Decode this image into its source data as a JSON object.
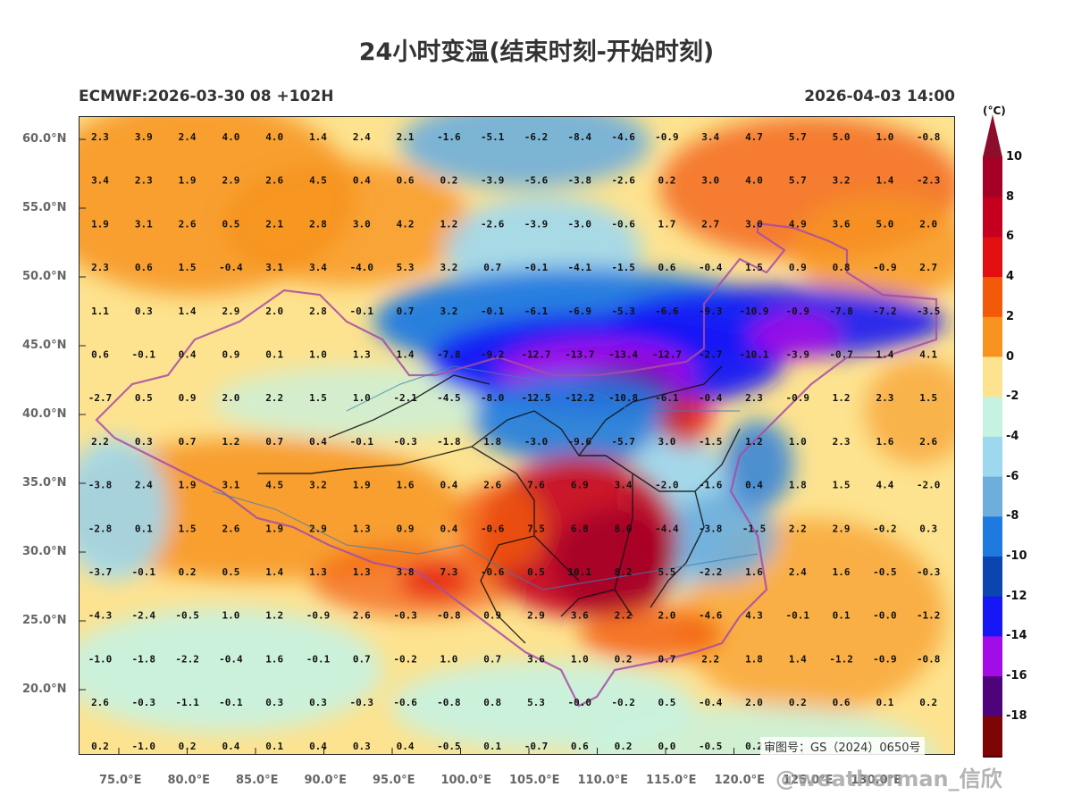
{
  "title": "24小时变温(结束时刻-开始时刻)",
  "model_info": "ECMWF:2026-03-30 08 +102H",
  "valid_time": "2026-04-03 14:00",
  "colorbar": {
    "unit": "(°C)",
    "labels": [
      "10",
      "8",
      "6",
      "4",
      "2",
      "0",
      "-2",
      "-4",
      "-6",
      "-8",
      "-10",
      "-12",
      "-14",
      "-16",
      "-18"
    ],
    "colors": [
      "#a50026",
      "#c4001e",
      "#e10f0f",
      "#f25a0a",
      "#f7931e",
      "#fde390",
      "#c6f2e2",
      "#9ed8ef",
      "#6eaedb",
      "#1f7ae0",
      "#0b46b0",
      "#1717f5",
      "#a20ce6",
      "#4f037a",
      "#7d0505"
    ],
    "top_color": "#8c0e2a",
    "bottom_color": "#3a0000"
  },
  "lat_labels": [
    "60.0°N",
    "55.0°N",
    "50.0°N",
    "45.0°N",
    "40.0°N",
    "35.0°N",
    "30.0°N",
    "25.0°N",
    "20.0°N"
  ],
  "lon_labels": [
    "75.0°E",
    "80.0°E",
    "85.0°E",
    "90.0°E",
    "95.0°E",
    "100.0°E",
    "105.0°E",
    "110.0°E",
    "115.0°E",
    "120.0°E",
    "125.0°E",
    "130.0°E"
  ],
  "grid_values": [
    [
      "2.3",
      "3.9",
      "2.4",
      "4.0",
      "4.0",
      "1.4",
      "2.4",
      "2.1",
      "-1.6",
      "-5.1",
      "-6.2",
      "-8.4",
      "-4.6",
      "-0.9",
      "3.4",
      "4.7",
      "5.7",
      "5.0",
      "1.0",
      "-0.8"
    ],
    [
      "3.4",
      "2.3",
      "1.9",
      "2.9",
      "2.6",
      "4.5",
      "0.4",
      "0.6",
      "0.2",
      "-3.9",
      "-5.6",
      "-3.8",
      "-2.6",
      "0.2",
      "3.0",
      "4.0",
      "5.7",
      "3.2",
      "1.4",
      "-2.3"
    ],
    [
      "1.9",
      "3.1",
      "2.6",
      "0.5",
      "2.1",
      "2.8",
      "3.0",
      "4.2",
      "1.2",
      "-2.6",
      "-3.9",
      "-3.0",
      "-0.6",
      "1.7",
      "2.7",
      "3.0",
      "4.9",
      "3.6",
      "5.0",
      "2.0"
    ],
    [
      "2.3",
      "0.6",
      "1.5",
      "-0.4",
      "3.1",
      "3.4",
      "-4.0",
      "5.3",
      "3.2",
      "0.7",
      "-0.1",
      "-4.1",
      "-1.5",
      "0.6",
      "-0.4",
      "1.5",
      "0.9",
      "0.8",
      "-0.9",
      "2.7"
    ],
    [
      "1.1",
      "0.3",
      "1.4",
      "2.9",
      "2.0",
      "2.8",
      "-0.1",
      "0.7",
      "3.2",
      "-0.1",
      "-6.1",
      "-6.9",
      "-5.3",
      "-6.6",
      "-9.3",
      "-10.9",
      "-0.9",
      "-7.8",
      "-7.2",
      "-3.5"
    ],
    [
      "0.6",
      "-0.1",
      "0.4",
      "0.9",
      "0.1",
      "1.0",
      "1.3",
      "1.4",
      "-7.8",
      "-9.2",
      "-12.7",
      "-13.7",
      "-13.4",
      "-12.7",
      "-2.7",
      "-10.1",
      "-3.9",
      "-0.7",
      "1.4",
      "4.1"
    ],
    [
      "-2.7",
      "0.5",
      "0.9",
      "2.0",
      "2.2",
      "1.5",
      "1.0",
      "-2.1",
      "-4.5",
      "-8.0",
      "-12.5",
      "-12.2",
      "-10.8",
      "-6.1",
      "-0.4",
      "2.3",
      "-0.9",
      "1.2",
      "2.3",
      "1.5"
    ],
    [
      "2.2",
      "0.3",
      "0.7",
      "1.2",
      "0.7",
      "0.4",
      "-0.1",
      "-0.3",
      "-1.8",
      "1.8",
      "-3.0",
      "-9.6",
      "-5.7",
      "3.0",
      "-1.5",
      "1.2",
      "1.0",
      "2.3",
      "1.6",
      "2.6"
    ],
    [
      "-3.8",
      "2.4",
      "1.9",
      "3.1",
      "4.5",
      "3.2",
      "1.9",
      "1.6",
      "0.4",
      "2.6",
      "7.6",
      "6.9",
      "3.4",
      "-2.0",
      "-1.6",
      "0.4",
      "1.8",
      "1.5",
      "4.4",
      "-2.0"
    ],
    [
      "-2.8",
      "0.1",
      "1.5",
      "2.6",
      "1.9",
      "2.9",
      "1.3",
      "0.9",
      "0.4",
      "-0.6",
      "7.5",
      "6.8",
      "8.0",
      "-4.4",
      "-3.8",
      "-1.5",
      "2.2",
      "2.9",
      "-0.2",
      "0.3"
    ],
    [
      "-3.7",
      "-0.1",
      "0.2",
      "0.5",
      "1.4",
      "1.3",
      "1.3",
      "3.8",
      "7.3",
      "-0.6",
      "0.5",
      "10.1",
      "8.2",
      "5.5",
      "-2.2",
      "1.6",
      "2.4",
      "1.6",
      "-0.5",
      "-0.3"
    ],
    [
      "-4.3",
      "-2.4",
      "-0.5",
      "1.0",
      "1.2",
      "-0.9",
      "2.6",
      "-0.3",
      "-0.8",
      "0.9",
      "2.9",
      "3.6",
      "2.2",
      "2.0",
      "-4.6",
      "4.3",
      "-0.1",
      "0.1",
      "-0.0",
      "-1.2"
    ],
    [
      "-1.0",
      "-1.8",
      "-2.2",
      "-0.4",
      "1.6",
      "-0.1",
      "0.7",
      "-0.2",
      "1.0",
      "0.7",
      "3.6",
      "1.0",
      "0.2",
      "0.7",
      "2.2",
      "1.8",
      "1.4",
      "-1.2",
      "-0.9",
      "-0.8"
    ],
    [
      "2.6",
      "-0.3",
      "-1.1",
      "-0.1",
      "0.3",
      "0.3",
      "-0.3",
      "-0.6",
      "-0.8",
      "0.8",
      "5.3",
      "-0.0",
      "-0.2",
      "0.5",
      "-0.4",
      "2.0",
      "0.2",
      "0.6",
      "0.1",
      "0.2"
    ],
    [
      "0.2",
      "-1.0",
      "0.2",
      "0.4",
      "0.1",
      "0.4",
      "0.3",
      "0.4",
      "-0.5",
      "0.1",
      "-0.7",
      "0.6",
      "0.2",
      "0.0",
      "-0.5",
      "0.2",
      "",
      "",
      "",
      ""
    ]
  ],
  "review_number": "审图号：GS（2024）0650号",
  "watermark": "@weatherman_信欣"
}
